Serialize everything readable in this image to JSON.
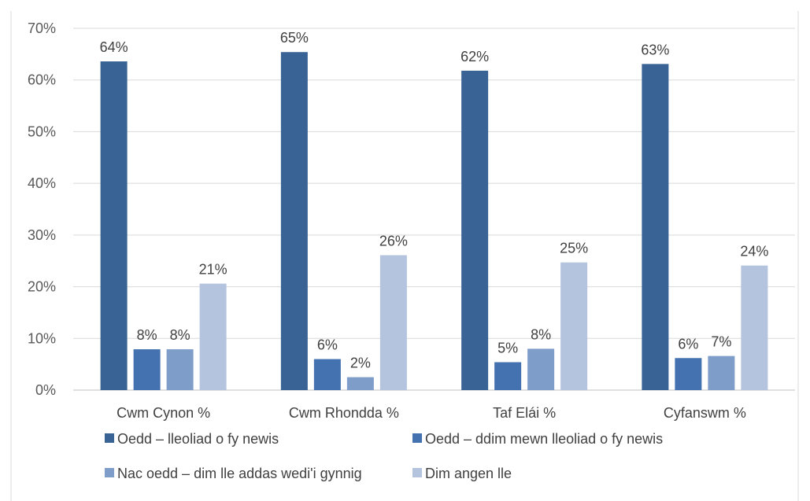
{
  "chart_data": {
    "type": "bar",
    "title": "",
    "xlabel": "",
    "ylabel": "",
    "categories": [
      "Cwm Cynon %",
      "Cwm Rhondda %",
      "Taf Elái %",
      "Cyfanswm %"
    ],
    "series": [
      {
        "name": "Oedd – lleoliad o fy newis",
        "color": "#3a6395",
        "values": [
          0.636,
          0.654,
          0.618,
          0.631
        ],
        "labels": [
          "64%",
          "65%",
          "62%",
          "63%"
        ]
      },
      {
        "name": "Oedd – ddim mewn lleoliad o fy newis",
        "color": "#4472b0",
        "values": [
          0.079,
          0.06,
          0.054,
          0.062
        ],
        "labels": [
          "8%",
          "6%",
          "5%",
          "6%"
        ]
      },
      {
        "name": "Nac oedd – dim lle addas wedi'i gynnig",
        "color": "#7f9dc9",
        "values": [
          0.079,
          0.025,
          0.08,
          0.066
        ],
        "labels": [
          "8%",
          "2%",
          "8%",
          "7%"
        ]
      },
      {
        "name": "Dim angen lle",
        "color": "#b4c3de",
        "values": [
          0.206,
          0.261,
          0.247,
          0.241
        ],
        "labels": [
          "21%",
          "26%",
          "25%",
          "24%"
        ]
      }
    ],
    "y_ticks": [
      "0%",
      "10%",
      "20%",
      "30%",
      "40%",
      "50%",
      "60%",
      "70%"
    ],
    "ylim": [
      0,
      0.7
    ],
    "grid": true,
    "legend_position": "bottom"
  }
}
